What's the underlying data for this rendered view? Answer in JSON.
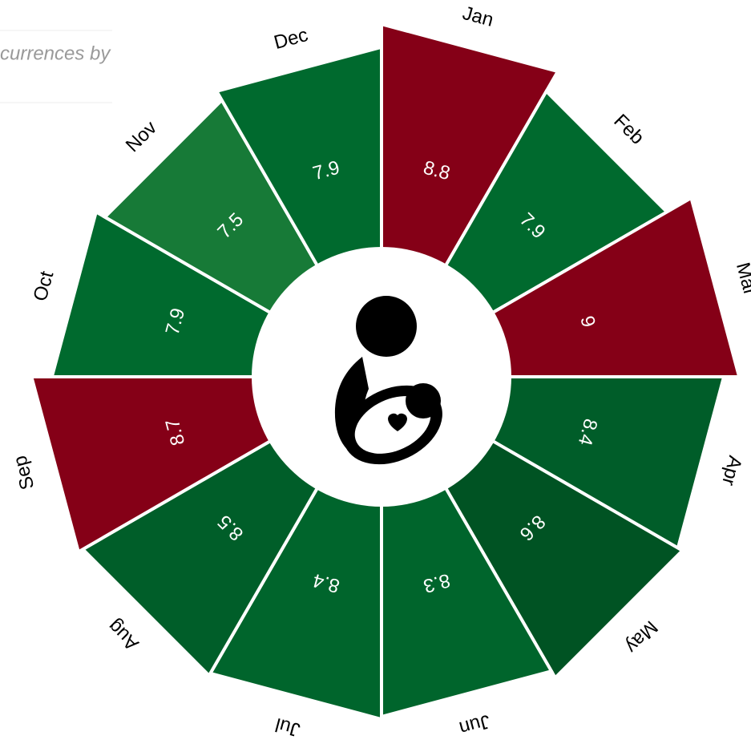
{
  "chart_data": {
    "type": "radial-bar",
    "title": "currences by",
    "categories": [
      "Jan",
      "Feb",
      "Mar",
      "Apr",
      "May",
      "Jun",
      "Jul",
      "Aug",
      "Sep",
      "Oct",
      "Nov",
      "Dec"
    ],
    "values": [
      8.8,
      7.9,
      9.0,
      8.4,
      8.6,
      8.3,
      8.4,
      8.5,
      8.7,
      7.9,
      7.5,
      7.9
    ],
    "colors": [
      "#850017",
      "#006a2e",
      "#850017",
      "#005d29",
      "#005323",
      "#00652c",
      "#00652c",
      "#005e29",
      "#850017",
      "#006a2e",
      "#177a37",
      "#006a2e"
    ],
    "ylim": [
      0,
      10
    ]
  }
}
